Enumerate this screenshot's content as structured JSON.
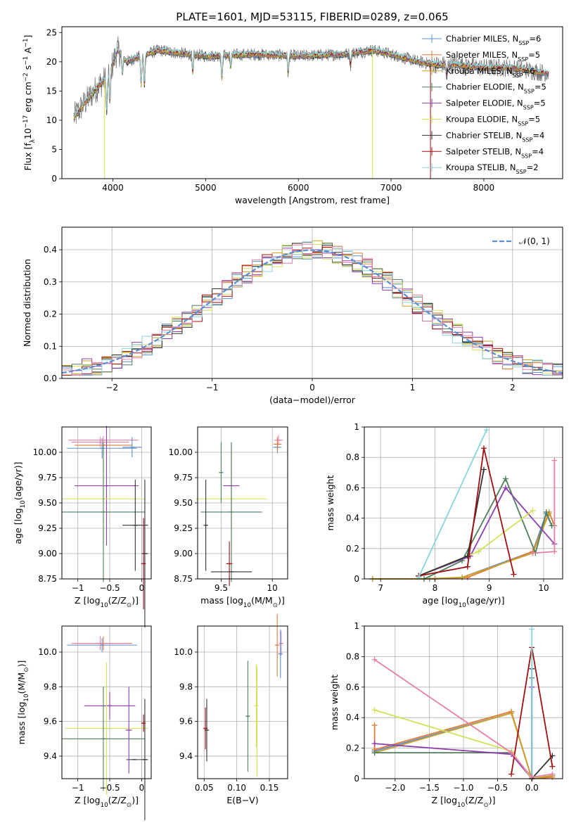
{
  "colors": {
    "chabrier_miles": "#5b8fd1",
    "salpeter_miles": "#e07b39",
    "kroupa_miles": "#c9a227",
    "chabrier_elodie": "#4d7f5a",
    "salpeter_elodie": "#8e3fb0",
    "kroupa_elodie": "#d4e157",
    "chabrier_stelib": "#333333",
    "salpeter_stelib": "#a01010",
    "kroupa_stelib": "#88d4dc",
    "pink": "#e57fa8",
    "gaussian": "#5b8fd1"
  },
  "chart_data": [
    {
      "id": "spectrum",
      "type": "line",
      "title": "PLATE=1601, MJD=53115, FIBERID=0289, z=0.065",
      "xlabel": "wavelength [Angstrom, rest frame]",
      "ylabel": "Flux [f$_\\lambda$10$^{-17}$ erg cm$^{-2}$ s$^{-1}$ A$^{-1}$]",
      "xlim": [
        3450,
        8850
      ],
      "ylim": [
        0,
        26
      ],
      "xticks": [
        4000,
        5000,
        6000,
        7000,
        8000
      ],
      "yticks": [
        0,
        5,
        10,
        15,
        20,
        25
      ],
      "legend_position": "top-right",
      "legend": [
        {
          "text": "Chabrier MILES, N",
          "sub": "SSP",
          "tail": "=6",
          "color": "chabrier_miles"
        },
        {
          "text": "Salpeter MILES, N",
          "sub": "SSP",
          "tail": "=5",
          "color": "salpeter_miles"
        },
        {
          "text": "Kroupa MILES, N",
          "sub": "SSP",
          "tail": "=6",
          "color": "kroupa_miles"
        },
        {
          "text": "Chabrier ELODIE, N",
          "sub": "SSP",
          "tail": "=5",
          "color": "chabrier_elodie"
        },
        {
          "text": "Salpeter ELODIE, N",
          "sub": "SSP",
          "tail": "=5",
          "color": "salpeter_elodie"
        },
        {
          "text": "Kroupa ELODIE, N",
          "sub": "SSP",
          "tail": "=5",
          "color": "kroupa_elodie"
        },
        {
          "text": "Chabrier STELIB, N",
          "sub": "SSP",
          "tail": "=4",
          "color": "chabrier_stelib"
        },
        {
          "text": "Salpeter STELIB, N",
          "sub": "SSP",
          "tail": "=4",
          "color": "salpeter_stelib"
        },
        {
          "text": "Kroupa STELIB, N",
          "sub": "SSP",
          "tail": "=2",
          "color": "kroupa_stelib"
        }
      ],
      "continuum": {
        "x": [
          3580,
          3650,
          3750,
          3850,
          3950,
          4050,
          4150,
          4300,
          4500,
          4700,
          5000,
          5500,
          6000,
          6500,
          6800,
          7000,
          7300,
          7500,
          7700,
          8000,
          8300,
          8500,
          8700
        ],
        "y": [
          10.5,
          12,
          14,
          16,
          17.5,
          22,
          20,
          21,
          22,
          21.5,
          21,
          21.3,
          21,
          21.3,
          22,
          21.3,
          20,
          19.5,
          19.5,
          19,
          19,
          18.5,
          18
        ]
      },
      "absorption_features": [
        {
          "x": 3934,
          "depth": 6
        },
        {
          "x": 3969,
          "depth": 5
        },
        {
          "x": 4102,
          "depth": 3
        },
        {
          "x": 4305,
          "depth": 5
        },
        {
          "x": 4340,
          "depth": 5
        },
        {
          "x": 4861,
          "depth": 3
        },
        {
          "x": 5175,
          "depth": 4
        },
        {
          "x": 5270,
          "depth": 2
        },
        {
          "x": 5890,
          "depth": 3
        },
        {
          "x": 6563,
          "depth": 2
        },
        {
          "x": 7600,
          "depth": 2
        }
      ],
      "dropouts": [
        {
          "x": 3910,
          "color": "kroupa_elodie"
        },
        {
          "x": 6800,
          "color": "kroupa_elodie"
        },
        {
          "x": 7425,
          "color": "salpeter_stelib"
        }
      ]
    },
    {
      "id": "residuals",
      "type": "histogram",
      "xlabel": "(data-model)/error",
      "ylabel": "Normed distribution",
      "xlim": [
        -2.5,
        2.5
      ],
      "ylim": [
        0,
        0.47
      ],
      "xticks": [
        -2,
        -1,
        0,
        1,
        2
      ],
      "yticks": [
        0.0,
        0.1,
        0.2,
        0.3,
        0.4
      ],
      "grid": true,
      "bin_width": 0.1,
      "bin_start": -2.5,
      "legend_position": "top-right",
      "legend": [
        {
          "text": "𝒩(0, 1)",
          "color": "gaussian",
          "style": "dashed"
        }
      ],
      "gaussian": {
        "mean": 0,
        "sigma": 1
      },
      "series_colors": [
        "chabrier_miles",
        "salpeter_miles",
        "kroupa_miles",
        "chabrier_elodie",
        "salpeter_elodie",
        "kroupa_elodie",
        "chabrier_stelib",
        "salpeter_stelib",
        "kroupa_stelib",
        "pink"
      ]
    },
    {
      "id": "age_vs_Z",
      "type": "errorbar",
      "xlabel": "Z [log$_{10}$(Z/Z$_\\odot$)]",
      "ylabel": "age  [log$_{10}$(age/yr)]",
      "xlim": [
        -1.25,
        0.15
      ],
      "ylim": [
        8.75,
        10.25
      ],
      "xticks": [
        -1.0,
        -0.5,
        0.0
      ],
      "yticks": [
        8.75,
        9.0,
        9.25,
        9.5,
        9.75,
        10.0
      ],
      "ytick_labels": [
        "8.75",
        "9.00",
        "9.25",
        "9.50",
        "9.75",
        "10.00"
      ],
      "grid": true,
      "points": [
        {
          "x": -0.62,
          "xerr": 0.55,
          "y": 10.04,
          "yerr": 0.1,
          "color": "chabrier_miles"
        },
        {
          "x": -0.6,
          "xerr": 0.45,
          "y": 10.07,
          "yerr": 0.07,
          "color": "salpeter_miles"
        },
        {
          "x": -0.65,
          "xerr": 0.45,
          "y": 10.1,
          "yerr": 0.05,
          "color": "pink"
        },
        {
          "x": -0.6,
          "xerr": 0.55,
          "y": 10.12,
          "yerr": 0.04,
          "color": "pink"
        },
        {
          "x": -0.55,
          "xerr": 0.5,
          "y": 9.67,
          "yerr": 0.59,
          "color": "salpeter_elodie"
        },
        {
          "x": -0.6,
          "xerr": 0.65,
          "y": 9.54,
          "yerr": 0.45,
          "color": "kroupa_elodie"
        },
        {
          "x": -0.6,
          "xerr": 0.65,
          "y": 9.41,
          "yerr": 0.69,
          "color": "chabrier_elodie"
        },
        {
          "x": -0.1,
          "xerr": 0.2,
          "y": 9.28,
          "yerr": 0.45,
          "color": "chabrier_stelib"
        },
        {
          "x": 0.05,
          "xerr": 0.05,
          "y": 9.0,
          "yerr": 0.73,
          "color": "chabrier_stelib"
        },
        {
          "x": 0.03,
          "xerr": 0.03,
          "y": 8.9,
          "yerr": 0.45,
          "color": "salpeter_stelib"
        },
        {
          "x": -0.15,
          "xerr": 0.15,
          "y": 10.05,
          "yerr": 0.1,
          "color": "chabrier_miles"
        }
      ]
    },
    {
      "id": "age_vs_mass",
      "type": "errorbar",
      "xlabel": "mass [log$_{10}$(M/M$_\\odot$)]",
      "ylabel": "",
      "xlim": [
        9.27,
        10.15
      ],
      "ylim": [
        8.75,
        10.25
      ],
      "xticks": [
        9.5,
        10.0
      ],
      "yticks": [
        8.75,
        9.0,
        9.25,
        9.5,
        9.75,
        10.0
      ],
      "ytick_labels": [
        "8.75",
        "9.00",
        "9.25",
        "9.50",
        "9.75",
        "10.00"
      ],
      "grid": true,
      "points": [
        {
          "x": 10.05,
          "xerr": 0.04,
          "y": 10.05,
          "yerr": 0.06,
          "color": "chabrier_miles"
        },
        {
          "x": 10.05,
          "xerr": 0.04,
          "y": 10.08,
          "yerr": 0.07,
          "color": "salpeter_miles"
        },
        {
          "x": 10.06,
          "xerr": 0.04,
          "y": 10.12,
          "yerr": 0.05,
          "color": "pink"
        },
        {
          "x": 9.6,
          "xerr": 0.08,
          "y": 9.67,
          "yerr": 0.42,
          "color": "salpeter_elodie"
        },
        {
          "x": 9.6,
          "xerr": 0.35,
          "y": 9.54,
          "yerr": 0.45,
          "color": "kroupa_elodie"
        },
        {
          "x": 9.6,
          "xerr": 0.3,
          "y": 9.41,
          "yerr": 0.69,
          "color": "chabrier_elodie"
        },
        {
          "x": 9.35,
          "xerr": 0.01,
          "y": 9.28,
          "yerr": 0.45,
          "color": "chabrier_stelib"
        },
        {
          "x": 9.6,
          "xerr": 0.2,
          "y": 8.82,
          "yerr": 0.0,
          "color": "chabrier_stelib"
        },
        {
          "x": 9.58,
          "xerr": 0.03,
          "y": 8.9,
          "yerr": 0.22,
          "color": "salpeter_stelib"
        },
        {
          "x": 9.5,
          "xerr": 0.0,
          "y": 9.8,
          "yerr": 0.3,
          "color": "chabrier_elodie"
        }
      ]
    },
    {
      "id": "weight_vs_age",
      "type": "line",
      "xlabel": "age  [log$_{10}$(age/yr)]",
      "ylabel": "mass weight",
      "xlim": [
        6.7,
        10.35
      ],
      "ylim": [
        0,
        1.0
      ],
      "xticks": [
        7,
        8,
        9,
        10
      ],
      "yticks": [
        0.0,
        0.2,
        0.4,
        0.6,
        0.8,
        1.0
      ],
      "grid": true,
      "series": [
        {
          "color": "chabrier_miles",
          "x": [
            6.85,
            7.9,
            8.5,
            9.8,
            10.05,
            10.15
          ],
          "y": [
            0.0,
            0.0,
            0.01,
            0.18,
            0.43,
            0.35
          ]
        },
        {
          "color": "salpeter_miles",
          "x": [
            6.85,
            8.0,
            8.6,
            9.8,
            10.1,
            10.2
          ],
          "y": [
            0.0,
            0.0,
            0.01,
            0.18,
            0.44,
            0.35
          ]
        },
        {
          "color": "kroupa_miles",
          "x": [
            6.85,
            7.8,
            8.5,
            9.8,
            10.1
          ],
          "y": [
            0.0,
            0.0,
            0.01,
            0.17,
            0.43
          ]
        },
        {
          "color": "chabrier_elodie",
          "x": [
            7.8,
            8.5,
            9.3,
            9.85,
            10.05,
            10.15
          ],
          "y": [
            0.0,
            0.12,
            0.66,
            0.17,
            0.44,
            0.35
          ]
        },
        {
          "color": "salpeter_elodie",
          "x": [
            7.7,
            8.65,
            9.3,
            10.2
          ],
          "y": [
            0.02,
            0.15,
            0.6,
            0.23
          ]
        },
        {
          "color": "kroupa_elodie",
          "x": [
            7.7,
            8.8,
            9.8
          ],
          "y": [
            0.02,
            0.18,
            0.45
          ]
        },
        {
          "color": "chabrier_stelib",
          "x": [
            7.7,
            8.6,
            8.9
          ],
          "y": [
            0.02,
            0.15,
            0.72
          ]
        },
        {
          "color": "salpeter_stelib",
          "x": [
            7.7,
            8.6,
            8.9,
            9.45
          ],
          "y": [
            0.02,
            0.08,
            0.86,
            0.03
          ]
        },
        {
          "color": "kroupa_stelib",
          "x": [
            7.7,
            8.95
          ],
          "y": [
            0.01,
            0.98
          ]
        },
        {
          "color": "pink",
          "x": [
            9.8,
            10.2,
            10.2
          ],
          "y": [
            0.17,
            0.18,
            0.78
          ]
        }
      ]
    },
    {
      "id": "mass_vs_Z",
      "type": "errorbar",
      "xlabel": "Z [log$_{10}$(Z/Z$_\\odot$)]",
      "ylabel": "mass [log$_{10}$(M/M$_\\odot$)]",
      "xlim": [
        -1.25,
        0.15
      ],
      "ylim": [
        9.27,
        10.15
      ],
      "xticks": [
        -1.0,
        -0.5,
        0.0
      ],
      "yticks": [
        9.4,
        9.6,
        9.8,
        10.0
      ],
      "ytick_labels": [
        "9.4",
        "9.6",
        "9.8",
        "10.0"
      ],
      "grid": true,
      "points": [
        {
          "x": -0.62,
          "xerr": 0.55,
          "y": 10.04,
          "yerr": 0.04,
          "color": "chabrier_miles"
        },
        {
          "x": -0.6,
          "xerr": 0.45,
          "y": 10.05,
          "yerr": 0.04,
          "color": "salpeter_miles"
        },
        {
          "x": -0.65,
          "xerr": 0.45,
          "y": 10.05,
          "yerr": 0.04,
          "color": "pink"
        },
        {
          "x": -0.5,
          "xerr": 0.4,
          "y": 9.69,
          "yerr": 0.08,
          "color": "salpeter_elodie"
        },
        {
          "x": -0.55,
          "xerr": 0.65,
          "y": 9.56,
          "yerr": 0.38,
          "color": "kroupa_elodie"
        },
        {
          "x": -0.6,
          "xerr": 0.65,
          "y": 9.5,
          "yerr": 0.3,
          "color": "chabrier_elodie"
        },
        {
          "x": -0.2,
          "xerr": 0.05,
          "y": 9.55,
          "yerr": 0.25,
          "color": "salpeter_elodie"
        },
        {
          "x": 0.05,
          "xerr": 0.05,
          "y": 9.38,
          "yerr": 0.35,
          "color": "chabrier_stelib"
        },
        {
          "x": 0.03,
          "xerr": 0.03,
          "y": 9.59,
          "yerr": 0.05,
          "color": "salpeter_stelib"
        },
        {
          "x": -0.12,
          "xerr": 0.12,
          "y": 9.38,
          "yerr": 0.0,
          "color": "chabrier_stelib"
        }
      ]
    },
    {
      "id": "mass_vs_ebv",
      "type": "errorbar",
      "xlabel": "E(B-V)",
      "ylabel": "",
      "xlim": [
        0.04,
        0.178
      ],
      "ylim": [
        9.27,
        10.15
      ],
      "xticks": [
        0.05,
        0.1,
        0.15
      ],
      "xtick_labels": [
        "0.05",
        "0.10",
        "0.15"
      ],
      "yticks": [
        9.4,
        9.6,
        9.8,
        10.0
      ],
      "ytick_labels": [
        "9.4",
        "9.6",
        "9.8",
        "10.0"
      ],
      "grid": true,
      "points": [
        {
          "x": 0.054,
          "xerr": 0.0,
          "y": 9.55,
          "yerr": 0.18,
          "color": "chabrier_stelib"
        },
        {
          "x": 0.052,
          "xerr": 0.0,
          "y": 9.56,
          "yerr": 0.12,
          "color": "salpeter_stelib"
        },
        {
          "x": 0.117,
          "xerr": 0.0,
          "y": 9.63,
          "yerr": 0.32,
          "color": "chabrier_elodie"
        },
        {
          "x": 0.13,
          "xerr": 0.0,
          "y": 9.69,
          "yerr": 0.24,
          "color": "kroupa_elodie"
        },
        {
          "x": 0.131,
          "xerr": 0.0,
          "y": 9.6,
          "yerr": 0.32,
          "color": "kroupa_elodie"
        },
        {
          "x": 0.162,
          "xerr": 0.0,
          "y": 10.04,
          "yerr": 0.18,
          "color": "salpeter_miles"
        },
        {
          "x": 0.168,
          "xerr": 0.0,
          "y": 10.05,
          "yerr": 0.07,
          "color": "pink"
        },
        {
          "x": 0.167,
          "xerr": 0.0,
          "y": 9.99,
          "yerr": 0.14,
          "color": "chabrier_miles"
        }
      ]
    },
    {
      "id": "weight_vs_Z",
      "type": "line",
      "xlabel": "Z [log$_{10}$(Z/Z$_\\odot$)]",
      "ylabel": "mass weight",
      "xlim": [
        -2.45,
        0.45
      ],
      "ylim": [
        0,
        1.0
      ],
      "xticks": [
        -2.0,
        -1.5,
        -1.0,
        -0.5,
        0.0
      ],
      "xtick_labels": [
        "−2.0",
        "−1.5",
        "−1.0",
        "−0.5",
        "0.0"
      ],
      "yticks": [
        0.0,
        0.2,
        0.4,
        0.6,
        0.8,
        1.0
      ],
      "grid": true,
      "series": [
        {
          "color": "chabrier_miles",
          "x": [
            -2.3,
            -0.3,
            0.0,
            0.3
          ],
          "y": [
            0.18,
            0.43,
            0.0,
            0.02
          ]
        },
        {
          "color": "salpeter_miles",
          "x": [
            -2.3,
            -2.3,
            -0.3,
            0.0,
            0.3
          ],
          "y": [
            0.35,
            0.19,
            0.44,
            0.0,
            0.01
          ]
        },
        {
          "color": "kroupa_miles",
          "x": [
            -2.3,
            -0.3,
            0.0,
            0.3
          ],
          "y": [
            0.17,
            0.43,
            0.0,
            0.02
          ]
        },
        {
          "color": "chabrier_elodie",
          "x": [
            -2.3,
            -0.3,
            0.0,
            0.0
          ],
          "y": [
            0.17,
            0.17,
            0.0,
            0.66
          ]
        },
        {
          "color": "salpeter_elodie",
          "x": [
            -2.3,
            -0.3,
            0.0,
            0.0
          ],
          "y": [
            0.23,
            0.16,
            0.0,
            0.6
          ]
        },
        {
          "color": "kroupa_elodie",
          "x": [
            -2.3,
            -0.3,
            0.0
          ],
          "y": [
            0.45,
            0.18,
            0.0
          ]
        },
        {
          "color": "chabrier_stelib",
          "x": [
            0.0,
            0.0,
            0.3
          ],
          "y": [
            0.72,
            0.0,
            0.15
          ]
        },
        {
          "color": "salpeter_stelib",
          "x": [
            -0.3,
            0.0,
            0.3
          ],
          "y": [
            0.03,
            0.86,
            0.08
          ]
        },
        {
          "color": "kroupa_stelib",
          "x": [
            0.0,
            0.0
          ],
          "y": [
            0.98,
            0.01
          ]
        },
        {
          "color": "pink",
          "x": [
            -2.3,
            -0.3,
            0.0,
            0.3
          ],
          "y": [
            0.78,
            0.17,
            0.01,
            0.03
          ]
        }
      ]
    }
  ]
}
